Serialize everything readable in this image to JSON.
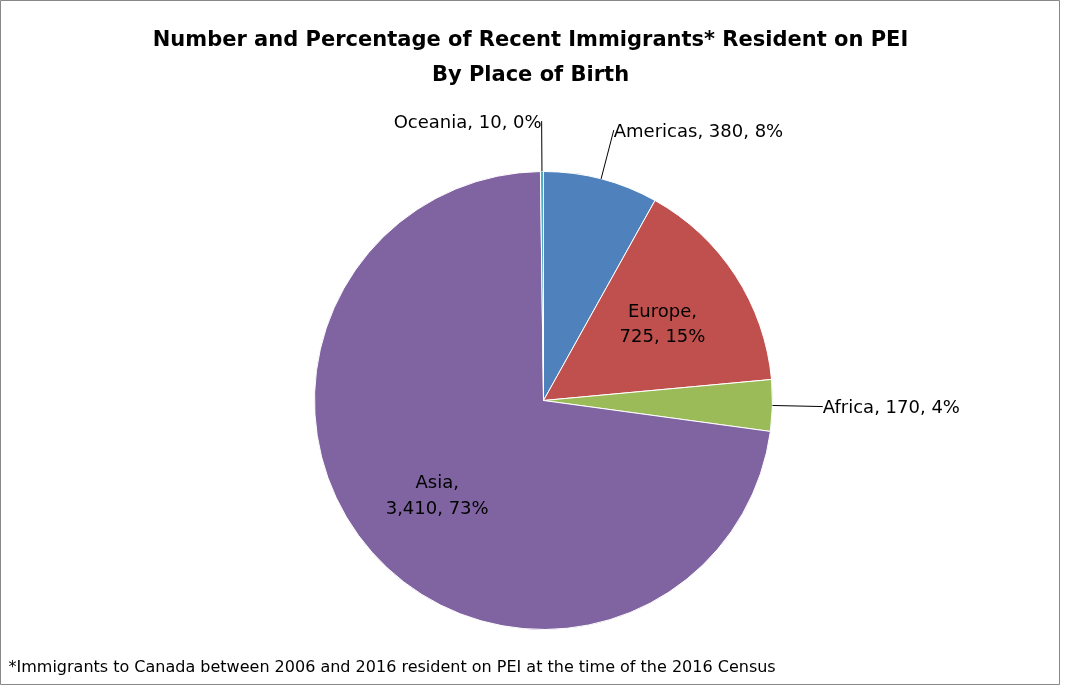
{
  "chart_data": {
    "type": "pie",
    "title": "Number and Percentage of Recent Immigrants* Resident on PEI",
    "subtitle": "By Place of Birth",
    "categories": [
      "Americas",
      "Europe",
      "Africa",
      "Asia",
      "Oceania"
    ],
    "values": [
      380,
      725,
      170,
      3410,
      10
    ],
    "colors": [
      "#4f81bd",
      "#c0504d",
      "#9bbb59",
      "#8064a2",
      "#4bacc6"
    ],
    "value_labels": [
      ", 380, 8%",
      ", 725, 15%",
      ", 170, 4%",
      ", 3,410, 73%",
      ", 10, 0%"
    ],
    "annotations": [
      "*Immigrants to Canada between 2006 and 2016 resident on PEI at the time of the 2016 Census"
    ],
    "legend": false
  }
}
